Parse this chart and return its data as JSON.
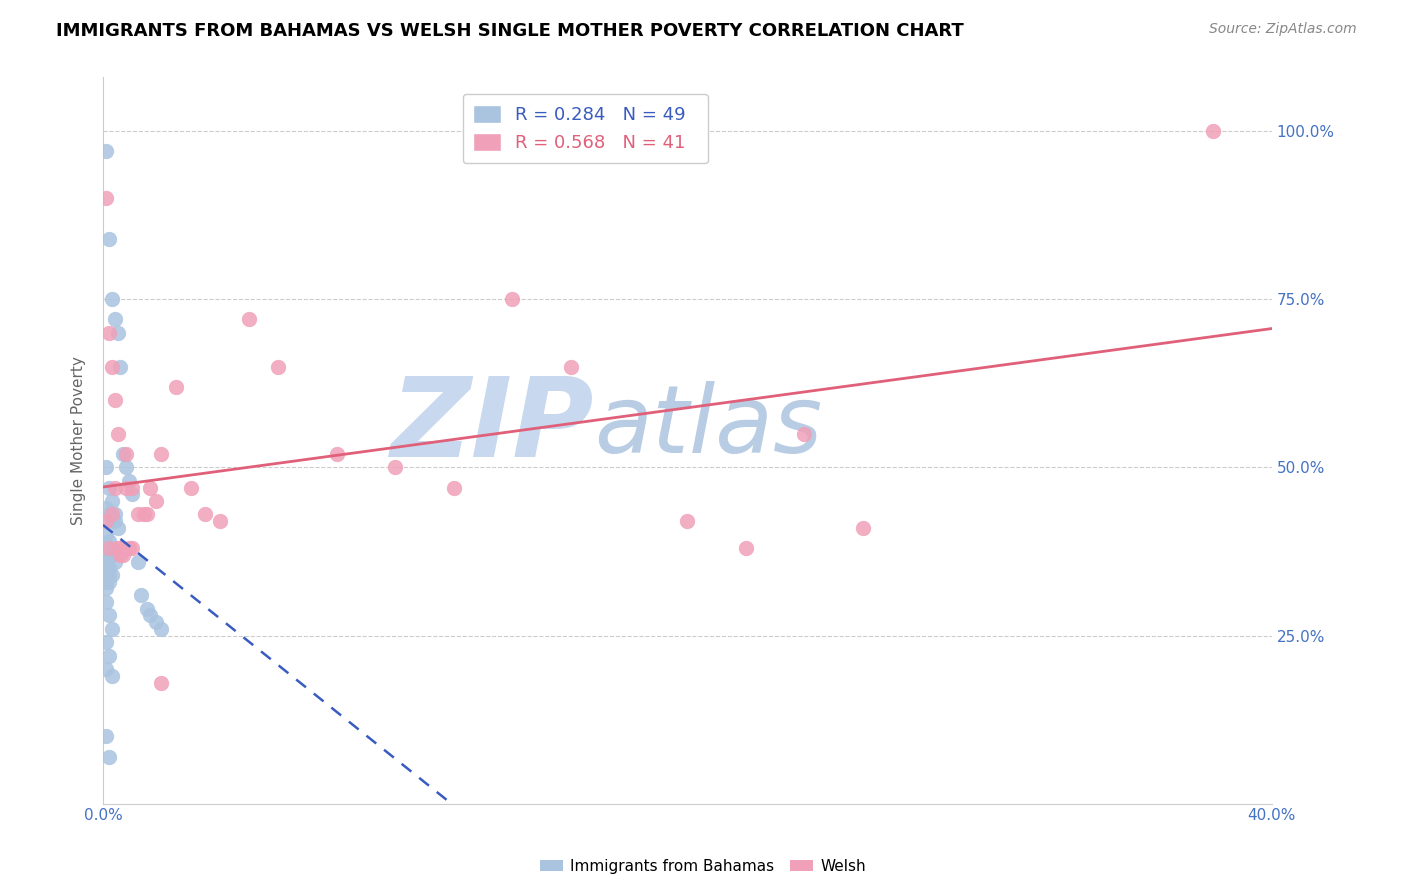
{
  "title": "IMMIGRANTS FROM BAHAMAS VS WELSH SINGLE MOTHER POVERTY CORRELATION CHART",
  "source": "Source: ZipAtlas.com",
  "ylabel": "Single Mother Poverty",
  "xlim": [
    0.0,
    0.4
  ],
  "ylim": [
    0.0,
    1.08
  ],
  "xtick_positions": [
    0.0,
    0.05,
    0.1,
    0.15,
    0.2,
    0.25,
    0.3,
    0.35,
    0.4
  ],
  "xtick_labels": [
    "0.0%",
    "",
    "",
    "",
    "",
    "",
    "",
    "",
    "40.0%"
  ],
  "ytick_positions": [
    0.25,
    0.5,
    0.75,
    1.0
  ],
  "ytick_labels": [
    "25.0%",
    "50.0%",
    "75.0%",
    "100.0%"
  ],
  "blue_color": "#aac4e0",
  "blue_line_color": "#3a5bbf",
  "pink_color": "#f0a0b8",
  "pink_line_color": "#e0607a",
  "blue_R": 0.284,
  "blue_N": 49,
  "pink_R": 0.568,
  "pink_N": 41,
  "watermark_zip": "ZIP",
  "watermark_atlas": "atlas",
  "watermark_zip_color": "#c8d8ee",
  "watermark_atlas_color": "#b8cce4",
  "background_color": "#ffffff",
  "grid_color": "#cccccc",
  "axis_label_color": "#4472c4",
  "title_color": "#000000",
  "title_fontsize": 13,
  "source_fontsize": 10,
  "axis_fontsize": 11,
  "tick_fontsize": 11,
  "blue_scatter_x": [
    0.001,
    0.002,
    0.003,
    0.004,
    0.005,
    0.006,
    0.007,
    0.008,
    0.009,
    0.01,
    0.001,
    0.002,
    0.003,
    0.004,
    0.005,
    0.001,
    0.002,
    0.003,
    0.001,
    0.002,
    0.003,
    0.004,
    0.001,
    0.002,
    0.001,
    0.002,
    0.003,
    0.001,
    0.002,
    0.001,
    0.012,
    0.013,
    0.015,
    0.016,
    0.018,
    0.02,
    0.001,
    0.002,
    0.003,
    0.004,
    0.001,
    0.002,
    0.003,
    0.001,
    0.002,
    0.001,
    0.003,
    0.001,
    0.002
  ],
  "blue_scatter_y": [
    0.97,
    0.84,
    0.75,
    0.72,
    0.7,
    0.65,
    0.52,
    0.5,
    0.48,
    0.46,
    0.44,
    0.43,
    0.42,
    0.42,
    0.41,
    0.4,
    0.39,
    0.38,
    0.37,
    0.37,
    0.37,
    0.36,
    0.36,
    0.35,
    0.35,
    0.34,
    0.34,
    0.33,
    0.33,
    0.32,
    0.36,
    0.31,
    0.29,
    0.28,
    0.27,
    0.26,
    0.5,
    0.47,
    0.45,
    0.43,
    0.3,
    0.28,
    0.26,
    0.24,
    0.22,
    0.2,
    0.19,
    0.1,
    0.07
  ],
  "pink_scatter_x": [
    0.001,
    0.002,
    0.003,
    0.004,
    0.005,
    0.006,
    0.007,
    0.008,
    0.009,
    0.01,
    0.012,
    0.014,
    0.016,
    0.018,
    0.02,
    0.025,
    0.03,
    0.035,
    0.04,
    0.05,
    0.06,
    0.08,
    0.1,
    0.12,
    0.14,
    0.16,
    0.2,
    0.22,
    0.24,
    0.26,
    0.001,
    0.002,
    0.003,
    0.004,
    0.005,
    0.006,
    0.008,
    0.01,
    0.015,
    0.02,
    0.38
  ],
  "pink_scatter_y": [
    0.9,
    0.7,
    0.65,
    0.6,
    0.55,
    0.38,
    0.37,
    0.47,
    0.38,
    0.47,
    0.43,
    0.43,
    0.47,
    0.45,
    0.52,
    0.62,
    0.47,
    0.43,
    0.42,
    0.72,
    0.65,
    0.52,
    0.5,
    0.47,
    0.75,
    0.65,
    0.42,
    0.38,
    0.55,
    0.41,
    0.42,
    0.38,
    0.43,
    0.47,
    0.38,
    0.37,
    0.52,
    0.38,
    0.43,
    0.18,
    1.0
  ]
}
